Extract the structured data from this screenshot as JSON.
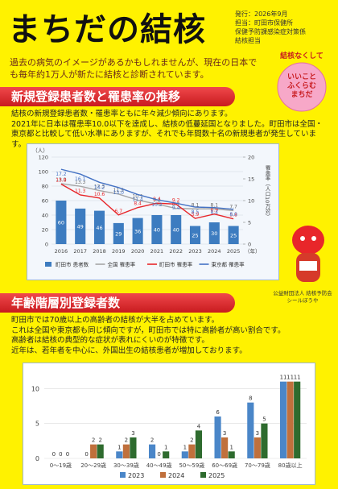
{
  "header": {
    "title": "まちだの結核",
    "issue": [
      "発行：2026年9月",
      "担当：町田市保健所",
      "保健予防課感染症対策係",
      "結核担当"
    ]
  },
  "intro": "過去の病気のイメージがあるかもしれませんが、現在の日本でも毎年約1万人が新たに結核と診断されています。",
  "mascot": {
    "slogan": "結核なくして",
    "badge": [
      "いいこと",
      "ふくらむ",
      "まちだ"
    ],
    "caption": [
      "公益財団法人 結核予防会",
      "シールぼうや"
    ]
  },
  "sections": [
    {
      "heading": "新規登録患者数と罹患率の推移",
      "paragraph": [
        "結核の新規登録患者数・罹患率ともに年々減少傾向にあります。",
        "2021年に日本は罹患率10.0以下を達成し、結核の低蔓延国となりました。町田市は全国・東京都と比較して低い水準にありますが、それでも年間数十名の新規患者が発生しています。"
      ]
    },
    {
      "heading": "年齢階層別登録者数",
      "paragraph": [
        "町田市では70歳以上の高齢者の結核が大半を占めています。",
        "これは全国や東京都も同じ傾向ですが，町田市では特に高齢者が高い割合です。",
        "高齢者は結核の典型的な症状が表れにくいのが特徴です。",
        "近年は、若年者を中心に、外国出生の結核患者が増加しております。"
      ]
    }
  ],
  "chart_data": [
    {
      "type": "combo",
      "categories": [
        "2016",
        "2017",
        "2018",
        "2019",
        "2020",
        "2021",
        "2022",
        "2023",
        "2024",
        "2025"
      ],
      "x_label": "（年）",
      "y_label": "（人）",
      "y2_label": "罹患率（人口10万対）",
      "ylim": [
        0,
        120
      ],
      "yticks": [
        0,
        20,
        40,
        60,
        80,
        100,
        120
      ],
      "y2lim": [
        0,
        20
      ],
      "y2ticks": [
        0,
        5,
        10,
        15,
        20
      ],
      "grid": true,
      "series": [
        {
          "name": "町田市 患者数",
          "kind": "bar",
          "color": "#3d7cc0",
          "values": [
            60,
            49,
            46,
            29,
            36,
            40,
            40,
            25,
            30,
            25
          ]
        },
        {
          "name": "全国 罹患率",
          "kind": "line",
          "axis": "y2",
          "color": "#a6a6a6",
          "values": [
            13.9,
            13.3,
            12.3,
            11.5,
            10.1,
            9.2,
            8.2,
            8.1,
            8.1,
            7.7
          ]
        },
        {
          "name": "町田市 罹患率",
          "kind": "line",
          "axis": "y2",
          "color": "#e8262a",
          "values": [
            13.8,
            11.3,
            10.6,
            6.7,
            8.4,
            9.4,
            9.2,
            5.9,
            6.9,
            5.8
          ]
        },
        {
          "name": "東京都 罹患率",
          "kind": "line",
          "axis": "y2",
          "color": "#4472c4",
          "values": [
            17.2,
            16.1,
            14.2,
            13.0,
            11.4,
            10.2,
            9.4,
            8.5,
            8.4,
            8.0
          ],
          "value_labels": [
            "17.2",
            "16.1",
            "14.2",
            "13.0",
            "11.4",
            "10.2",
            "9.4",
            "8.5",
            "8.4",
            "8.0"
          ]
        }
      ]
    },
    {
      "type": "bar",
      "categories": [
        "0〜19歳",
        "20〜29歳",
        "30〜39歳",
        "40〜49歳",
        "50〜59歳",
        "60〜69歳",
        "70〜79歳",
        "80歳以上"
      ],
      "ylim": [
        0,
        12
      ],
      "yticks": [
        0,
        5,
        10
      ],
      "grid": true,
      "series": [
        {
          "name": "2023",
          "color": "#4a86c8",
          "values": [
            0,
            0,
            1,
            2,
            1,
            6,
            8,
            11
          ]
        },
        {
          "name": "2024",
          "color": "#c0703c",
          "values": [
            0,
            2,
            2,
            0,
            2,
            3,
            3,
            11
          ]
        },
        {
          "name": "2025",
          "color": "#2e6b2e",
          "values": [
            0,
            2,
            3,
            1,
            4,
            1,
            5,
            11
          ]
        }
      ]
    }
  ]
}
